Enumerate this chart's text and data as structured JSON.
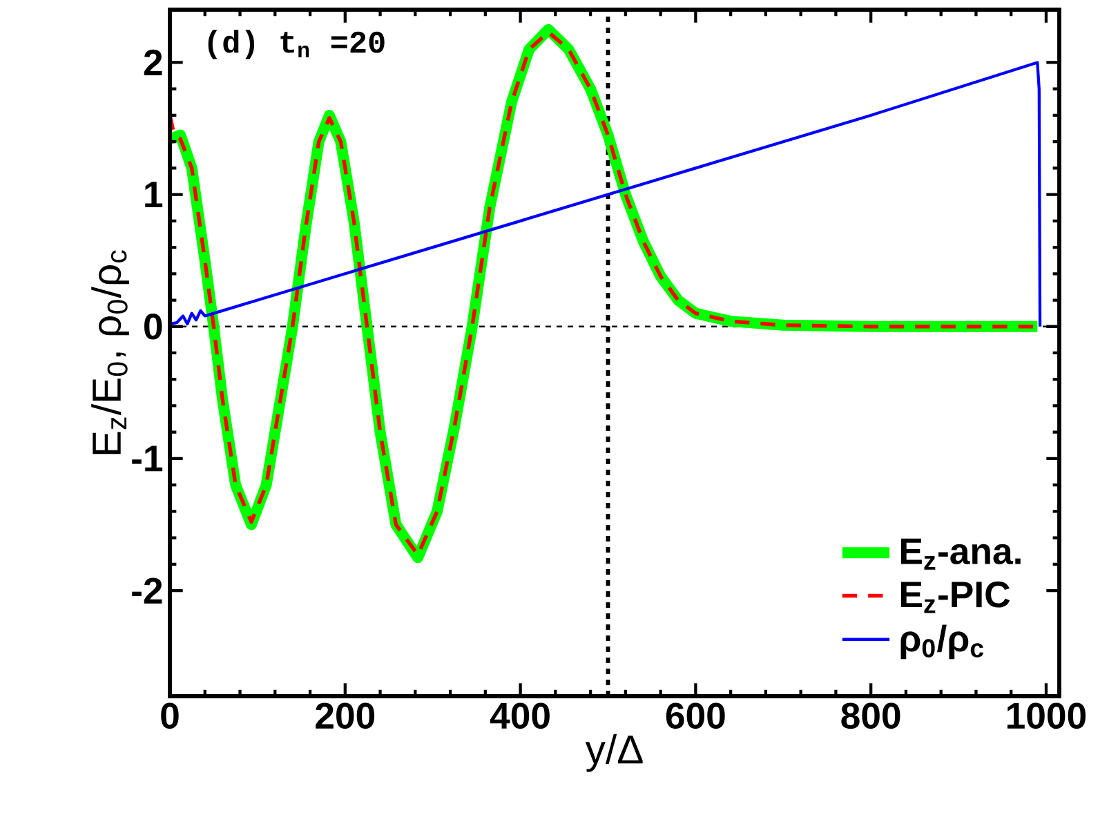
{
  "chart_data": {
    "type": "line",
    "xlabel": "y/Δ",
    "ylabel": "E$_{z}$/E$_{0}$, ρ$_{0}$/ρ$_{c}$",
    "annotations": [
      "(d) t$_{n}$ =20"
    ],
    "xlim": [
      0,
      1015
    ],
    "ylim": [
      -2.8,
      2.4
    ],
    "xticks": [
      0,
      200,
      400,
      600,
      800,
      1000
    ],
    "yticks": [
      -2,
      -1,
      0,
      1,
      2
    ],
    "legend": "bottom right",
    "grid": false,
    "marker": "none",
    "ref_lines": [
      {
        "axis": "x",
        "value": 500,
        "color": "#000000",
        "line_style": "dashed"
      },
      {
        "axis": "y",
        "value": 0,
        "color": "#000000",
        "line_style": "dashed"
      }
    ],
    "series": [
      {
        "name": "E$_{z}$-ana.",
        "color": "#00ff00",
        "line_style": "solid",
        "x": [
          0,
          12,
          25,
          40,
          50,
          60,
          75,
          93,
          110,
          125,
          140,
          155,
          170,
          182,
          195,
          210,
          225,
          240,
          258,
          283,
          305,
          325,
          345,
          365,
          390,
          410,
          432,
          455,
          480,
          500,
          520,
          540,
          560,
          580,
          600,
          640,
          700,
          800,
          900,
          990
        ],
        "values": [
          1.42,
          1.45,
          1.2,
          0.5,
          0,
          -0.55,
          -1.2,
          -1.5,
          -1.2,
          -0.6,
          0,
          0.75,
          1.4,
          1.6,
          1.4,
          0.8,
          0,
          -0.8,
          -1.5,
          -1.75,
          -1.4,
          -0.75,
          0,
          0.9,
          1.7,
          2.1,
          2.25,
          2.1,
          1.8,
          1.45,
          1.0,
          0.65,
          0.38,
          0.2,
          0.1,
          0.04,
          0.01,
          0,
          0,
          0
        ]
      },
      {
        "name": "E$_{z}$-PIC",
        "color": "#ff0000",
        "line_style": "dashed",
        "x": [
          0,
          5,
          12,
          25,
          40,
          50,
          60,
          75,
          93,
          110,
          125,
          140,
          155,
          170,
          182,
          195,
          210,
          225,
          240,
          258,
          283,
          305,
          325,
          345,
          365,
          390,
          410,
          432,
          455,
          480,
          500,
          520,
          540,
          560,
          580,
          600,
          640,
          700,
          800,
          900,
          990
        ],
        "values": [
          1.6,
          1.45,
          1.42,
          1.2,
          0.5,
          0,
          -0.55,
          -1.2,
          -1.48,
          -1.2,
          -0.6,
          0,
          0.75,
          1.4,
          1.58,
          1.4,
          0.8,
          0,
          -0.8,
          -1.5,
          -1.73,
          -1.4,
          -0.75,
          0,
          0.9,
          1.7,
          2.1,
          2.23,
          2.1,
          1.8,
          1.45,
          1.0,
          0.65,
          0.38,
          0.2,
          0.1,
          0.04,
          0.01,
          0,
          0,
          0
        ]
      },
      {
        "name": "ρ$_{0}$/ρ$_{c}$",
        "color": "#0000ff",
        "line_style": "solid",
        "x": [
          0,
          8,
          15,
          20,
          25,
          30,
          35,
          40,
          50,
          100,
          200,
          400,
          600,
          800,
          990,
          992,
          993
        ],
        "values": [
          0.02,
          0.03,
          0.08,
          0.02,
          0.1,
          0.05,
          0.12,
          0.08,
          0.1,
          0.2,
          0.4,
          0.8,
          1.2,
          1.6,
          2.0,
          1.8,
          0
        ]
      }
    ]
  }
}
